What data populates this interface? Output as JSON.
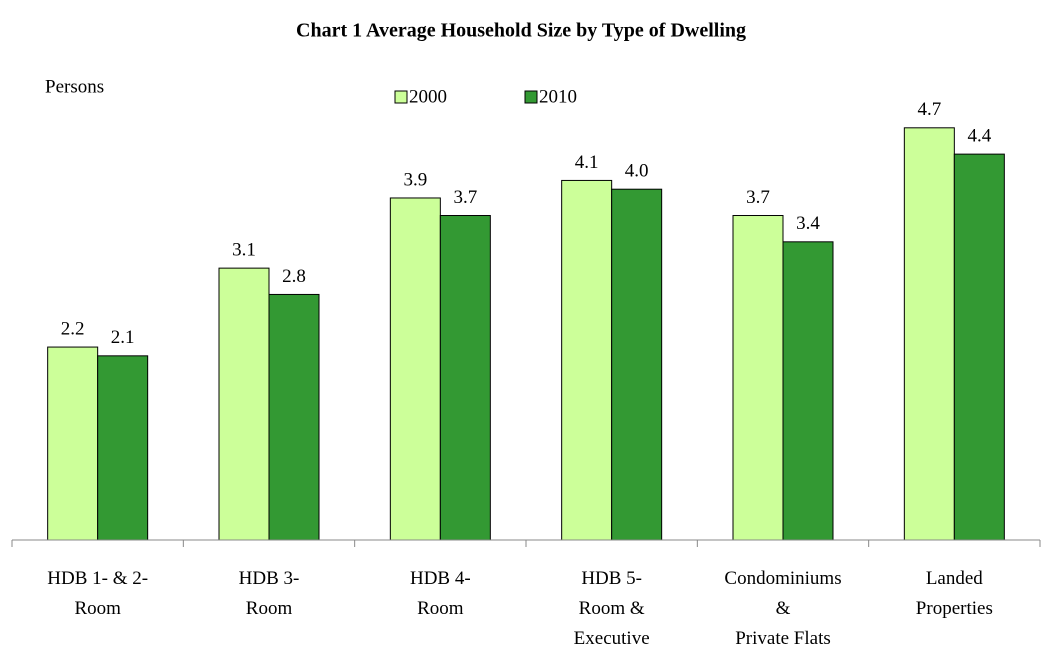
{
  "chart_data": {
    "type": "bar",
    "title": "Chart 1  Average Household Size by Type of Dwelling",
    "y_label": "Persons",
    "categories": [
      "HDB 1- & 2-\nRoom",
      "HDB 3-\nRoom",
      "HDB 4-\nRoom",
      "HDB 5-\nRoom &\nExecutive",
      "Condominiums\n&\nPrivate Flats",
      "Landed\nProperties"
    ],
    "series": [
      {
        "name": "2000",
        "color": "#ccff99",
        "values": [
          2.2,
          3.1,
          3.9,
          4.1,
          3.7,
          4.7
        ],
        "value_labels": [
          "2.2",
          "3.1",
          "3.9",
          "4.1",
          "3.7",
          "4.7"
        ]
      },
      {
        "name": "2010",
        "color": "#339933",
        "values": [
          2.1,
          2.8,
          3.7,
          4.0,
          3.4,
          4.4
        ],
        "value_labels": [
          "2.1",
          "2.8",
          "3.7",
          "4.0",
          "3.4",
          "4.4"
        ]
      }
    ],
    "ylim": [
      0,
      5
    ],
    "legend": "top"
  }
}
